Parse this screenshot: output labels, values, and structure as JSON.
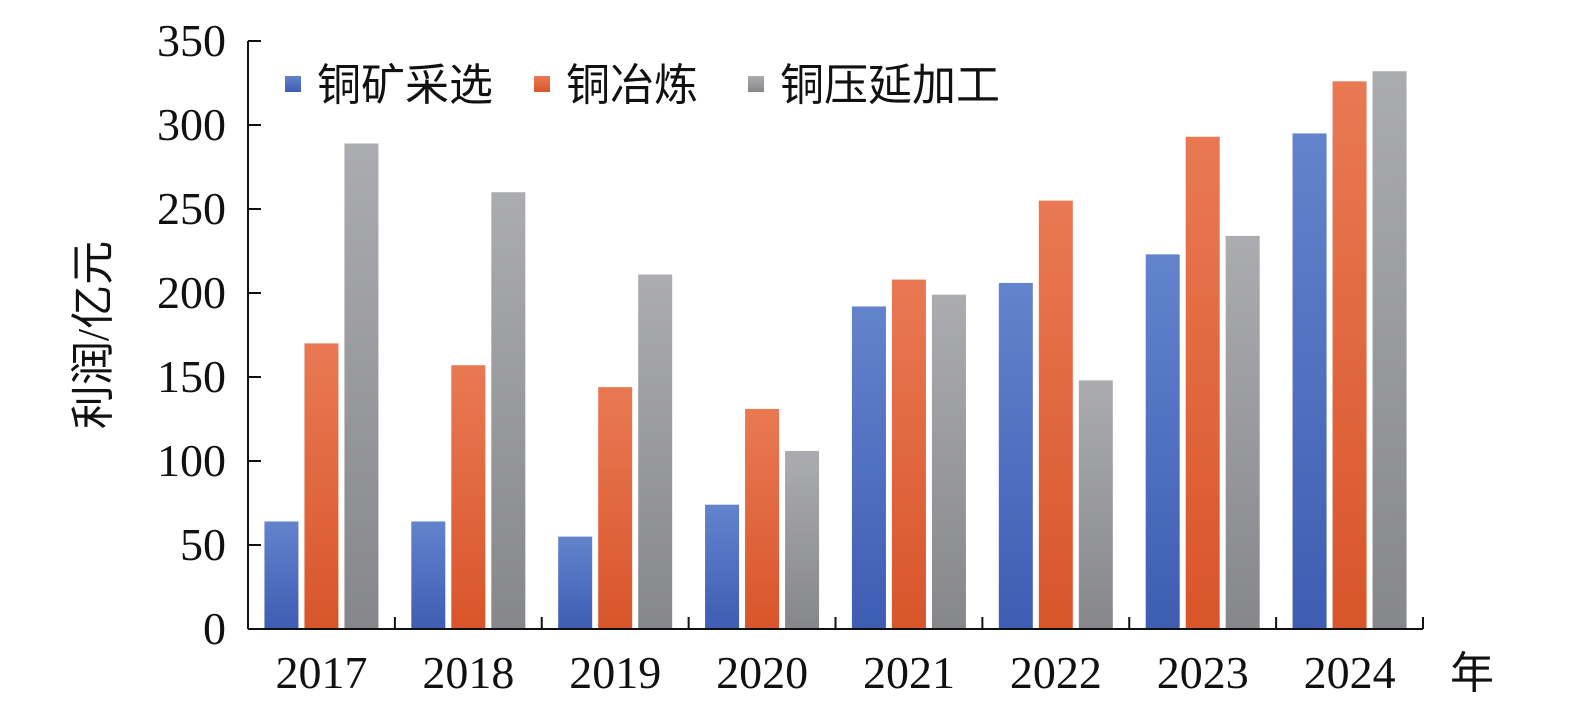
{
  "chart_data": {
    "type": "bar",
    "title": "",
    "xlabel": "年",
    "ylabel": "利润/亿元",
    "ylim": [
      0,
      350
    ],
    "yticks": [
      0,
      50,
      100,
      150,
      200,
      250,
      300,
      350
    ],
    "categories": [
      "2017",
      "2018",
      "2019",
      "2020",
      "2021",
      "2022",
      "2023",
      "2024"
    ],
    "legend_position": "top-left",
    "grid": false,
    "series": [
      {
        "name": "铜矿采选",
        "color": "#4a6cc0",
        "values": [
          64,
          64,
          55,
          74,
          192,
          206,
          223,
          295
        ]
      },
      {
        "name": "铜冶炼",
        "color": "#e4643a",
        "values": [
          170,
          157,
          144,
          131,
          208,
          255,
          293,
          326
        ]
      },
      {
        "name": "铜压延加工",
        "color": "#9a9b9e",
        "values": [
          289,
          260,
          211,
          106,
          199,
          148,
          234,
          332
        ]
      }
    ]
  }
}
